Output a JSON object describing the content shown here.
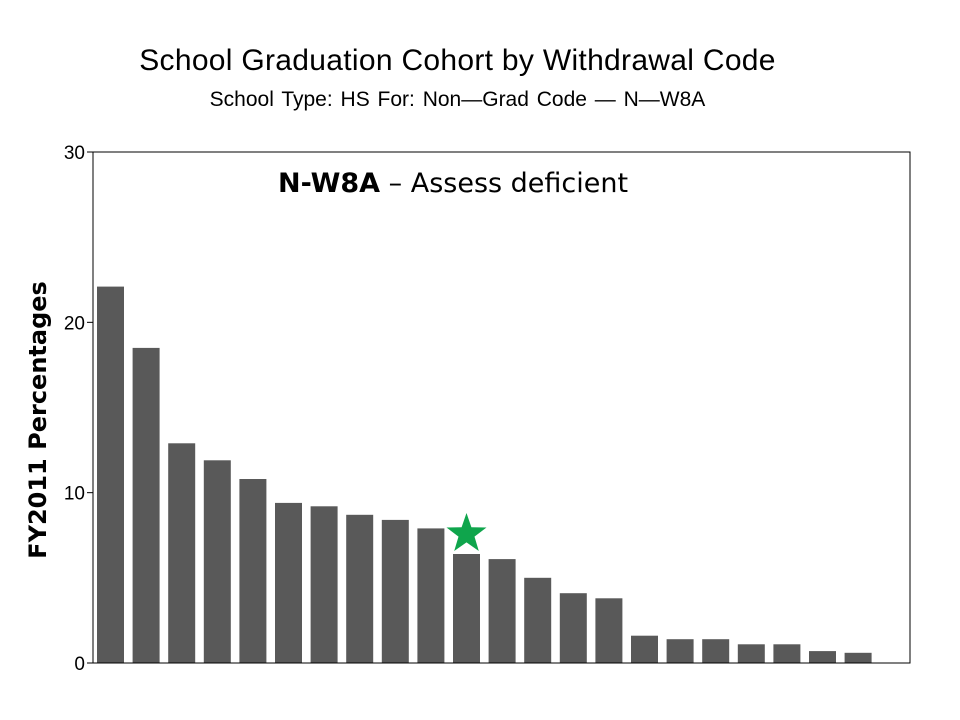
{
  "chart_data": {
    "type": "bar",
    "title": "School Graduation Cohort by Withdrawal Code",
    "subtitle": "School Type: HS      For: Non—Grad Code — N—W8A",
    "xlabel": "",
    "ylabel": "FY2011  Percentages",
    "ylim": [
      0,
      30
    ],
    "yticks": [
      0,
      10,
      20,
      30
    ],
    "grid": false,
    "annotation": {
      "code": "N-W8A",
      "text": " – Assess  deficient"
    },
    "highlight_index": 10,
    "highlight_marker": "star",
    "colors": {
      "bar": "#595959",
      "marker": "#0fa54c"
    },
    "values": [
      22.1,
      18.5,
      12.9,
      11.9,
      10.8,
      9.4,
      9.2,
      8.7,
      8.4,
      7.9,
      6.4,
      6.1,
      5.0,
      4.1,
      3.8,
      1.6,
      1.4,
      1.4,
      1.1,
      1.1,
      0.7,
      0.6
    ]
  }
}
